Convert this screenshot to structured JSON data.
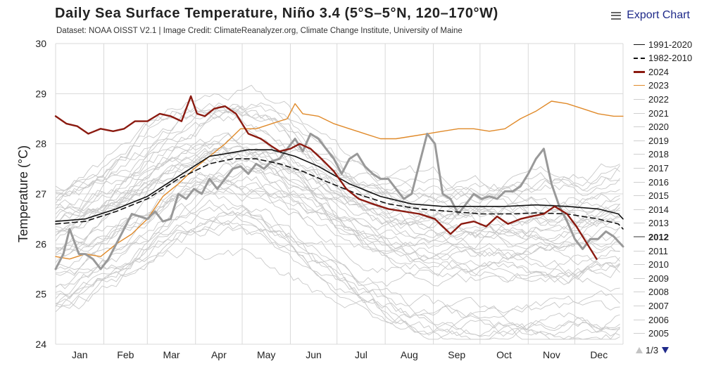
{
  "header": {
    "export_label": "Export Chart",
    "menu_icon": "hamburger-menu-icon"
  },
  "legend": {
    "items": [
      {
        "label": "1991-2020",
        "color": "#111111",
        "style": "solid",
        "bold": false
      },
      {
        "label": "1982-2010",
        "color": "#111111",
        "style": "dashed",
        "bold": false
      },
      {
        "label": "2024",
        "color": "#8b1a10",
        "style": "solid",
        "bold": false
      },
      {
        "label": "2023",
        "color": "#e08a2a",
        "style": "solid",
        "bold": false
      },
      {
        "label": "2022",
        "color": "#cfcfcf",
        "style": "solid",
        "bold": false
      },
      {
        "label": "2021",
        "color": "#cfcfcf",
        "style": "solid",
        "bold": false
      },
      {
        "label": "2020",
        "color": "#cfcfcf",
        "style": "solid",
        "bold": false
      },
      {
        "label": "2019",
        "color": "#cfcfcf",
        "style": "solid",
        "bold": false
      },
      {
        "label": "2018",
        "color": "#cfcfcf",
        "style": "solid",
        "bold": false
      },
      {
        "label": "2017",
        "color": "#cfcfcf",
        "style": "solid",
        "bold": false
      },
      {
        "label": "2016",
        "color": "#cfcfcf",
        "style": "solid",
        "bold": false
      },
      {
        "label": "2015",
        "color": "#cfcfcf",
        "style": "solid",
        "bold": false
      },
      {
        "label": "2014",
        "color": "#cfcfcf",
        "style": "solid",
        "bold": false
      },
      {
        "label": "2013",
        "color": "#cfcfcf",
        "style": "solid",
        "bold": false
      },
      {
        "label": "2012",
        "color": "#999999",
        "style": "solid",
        "bold": true
      },
      {
        "label": "2011",
        "color": "#cfcfcf",
        "style": "solid",
        "bold": false
      },
      {
        "label": "2010",
        "color": "#cfcfcf",
        "style": "solid",
        "bold": false
      },
      {
        "label": "2009",
        "color": "#cfcfcf",
        "style": "solid",
        "bold": false
      },
      {
        "label": "2008",
        "color": "#cfcfcf",
        "style": "solid",
        "bold": false
      },
      {
        "label": "2007",
        "color": "#cfcfcf",
        "style": "solid",
        "bold": false
      },
      {
        "label": "2006",
        "color": "#cfcfcf",
        "style": "solid",
        "bold": false
      },
      {
        "label": "2005",
        "color": "#cfcfcf",
        "style": "solid",
        "bold": false
      }
    ],
    "pager": "1/3",
    "prev_icon": "triangle-up-icon",
    "next_icon": "triangle-down-icon"
  },
  "chart_data": {
    "type": "line",
    "title": "Daily Sea Surface Temperature, Niño 3.4 (5°S–5°N, 120–170°W)",
    "subtitle": "Dataset: NOAA OISST V2.1 | Image Credit: ClimateReanalyzer.org, Climate Change Institute, University of Maine",
    "xlabel": "",
    "ylabel": "Temperature (°C)",
    "xlim": [
      1,
      366
    ],
    "ylim": [
      24,
      30
    ],
    "yticks": [
      24,
      25,
      26,
      27,
      28,
      29,
      30
    ],
    "months": [
      "Jan",
      "Feb",
      "Mar",
      "Apr",
      "May",
      "Jun",
      "Jul",
      "Aug",
      "Sep",
      "Oct",
      "Nov",
      "Dec"
    ],
    "month_starts": [
      1,
      32,
      60,
      91,
      121,
      152,
      182,
      213,
      244,
      274,
      305,
      335
    ],
    "grid": true,
    "legend_position": "right",
    "series": [
      {
        "name": "1991-2020",
        "color": "#111111",
        "style": "solid",
        "width": 1.6,
        "x": [
          1,
          20,
          40,
          60,
          80,
          100,
          110,
          125,
          140,
          155,
          170,
          190,
          210,
          230,
          250,
          270,
          290,
          310,
          330,
          350,
          363,
          366
        ],
        "y": [
          26.45,
          26.5,
          26.7,
          26.95,
          27.35,
          27.75,
          27.8,
          27.88,
          27.88,
          27.75,
          27.55,
          27.2,
          26.95,
          26.8,
          26.75,
          26.75,
          26.75,
          26.78,
          26.75,
          26.7,
          26.6,
          26.5
        ]
      },
      {
        "name": "1982-2010",
        "color": "#111111",
        "style": "dashed",
        "width": 1.6,
        "x": [
          1,
          20,
          40,
          60,
          80,
          100,
          115,
          130,
          145,
          160,
          175,
          195,
          215,
          235,
          255,
          275,
          295,
          310,
          330,
          350,
          363,
          366
        ],
        "y": [
          26.4,
          26.45,
          26.65,
          26.9,
          27.3,
          27.6,
          27.7,
          27.7,
          27.6,
          27.45,
          27.25,
          27.0,
          26.8,
          26.7,
          26.65,
          26.6,
          26.6,
          26.62,
          26.6,
          26.5,
          26.4,
          26.3
        ]
      },
      {
        "name": "2024",
        "color": "#8b1a10",
        "style": "solid",
        "width": 2.4,
        "x": [
          1,
          8,
          15,
          22,
          30,
          38,
          45,
          52,
          60,
          68,
          75,
          82,
          88,
          92,
          97,
          103,
          110,
          117,
          125,
          133,
          140,
          145,
          152,
          158,
          165,
          172,
          180,
          188,
          196,
          205,
          215,
          225,
          235,
          245,
          250,
          255,
          262,
          270,
          278,
          285,
          292,
          300,
          307,
          315,
          322,
          330,
          336,
          343,
          349
        ],
        "y": [
          28.55,
          28.4,
          28.35,
          28.2,
          28.3,
          28.25,
          28.3,
          28.45,
          28.45,
          28.6,
          28.55,
          28.45,
          28.95,
          28.6,
          28.55,
          28.7,
          28.75,
          28.6,
          28.2,
          28.1,
          27.95,
          27.85,
          27.9,
          28.0,
          27.9,
          27.7,
          27.45,
          27.1,
          26.9,
          26.8,
          26.7,
          26.65,
          26.6,
          26.5,
          26.35,
          26.2,
          26.4,
          26.45,
          26.35,
          26.55,
          26.4,
          26.5,
          26.55,
          26.6,
          26.75,
          26.6,
          26.35,
          26.0,
          25.7
        ]
      },
      {
        "name": "2023",
        "color": "#e08a2a",
        "style": "solid",
        "width": 1.4,
        "x": [
          1,
          10,
          20,
          30,
          40,
          50,
          60,
          70,
          80,
          90,
          100,
          110,
          120,
          130,
          140,
          150,
          155,
          160,
          170,
          180,
          190,
          200,
          210,
          220,
          230,
          240,
          250,
          260,
          270,
          280,
          290,
          300,
          310,
          320,
          330,
          340,
          350,
          360,
          366
        ],
        "y": [
          25.75,
          25.7,
          25.8,
          25.75,
          26.0,
          26.2,
          26.5,
          26.95,
          27.2,
          27.5,
          27.75,
          28.0,
          28.3,
          28.3,
          28.4,
          28.5,
          28.8,
          28.6,
          28.55,
          28.4,
          28.3,
          28.2,
          28.1,
          28.1,
          28.15,
          28.2,
          28.25,
          28.3,
          28.3,
          28.25,
          28.3,
          28.5,
          28.65,
          28.85,
          28.8,
          28.7,
          28.6,
          28.55,
          28.55
        ]
      },
      {
        "name": "2012",
        "color": "#999999",
        "style": "solid",
        "width": 3,
        "x": [
          1,
          6,
          10,
          16,
          20,
          25,
          30,
          35,
          40,
          45,
          50,
          55,
          60,
          65,
          70,
          75,
          80,
          85,
          90,
          95,
          100,
          105,
          110,
          115,
          120,
          125,
          130,
          135,
          140,
          145,
          150,
          155,
          160,
          165,
          170,
          175,
          180,
          185,
          190,
          195,
          200,
          205,
          210,
          215,
          220,
          225,
          230,
          235,
          240,
          245,
          250,
          255,
          260,
          265,
          270,
          275,
          280,
          285,
          290,
          295,
          300,
          305,
          310,
          315,
          320,
          325,
          330,
          335,
          340,
          345,
          350,
          355,
          360,
          366
        ],
        "y": [
          25.5,
          25.8,
          26.3,
          25.8,
          25.8,
          25.7,
          25.5,
          25.7,
          26.0,
          26.3,
          26.6,
          26.55,
          26.5,
          26.65,
          26.45,
          26.5,
          27.0,
          26.9,
          27.1,
          27.0,
          27.3,
          27.1,
          27.3,
          27.5,
          27.55,
          27.4,
          27.6,
          27.5,
          27.65,
          27.7,
          27.9,
          28.1,
          27.85,
          28.2,
          28.1,
          27.9,
          27.7,
          27.4,
          27.7,
          27.8,
          27.55,
          27.4,
          27.3,
          27.3,
          27.1,
          26.9,
          27.0,
          27.6,
          28.2,
          28.0,
          27.0,
          26.9,
          26.6,
          26.8,
          27.0,
          26.9,
          26.95,
          26.9,
          27.05,
          27.05,
          27.15,
          27.4,
          27.7,
          27.9,
          27.2,
          26.75,
          26.45,
          26.1,
          25.9,
          26.1,
          26.1,
          26.25,
          26.15,
          25.95
        ]
      }
    ]
  }
}
